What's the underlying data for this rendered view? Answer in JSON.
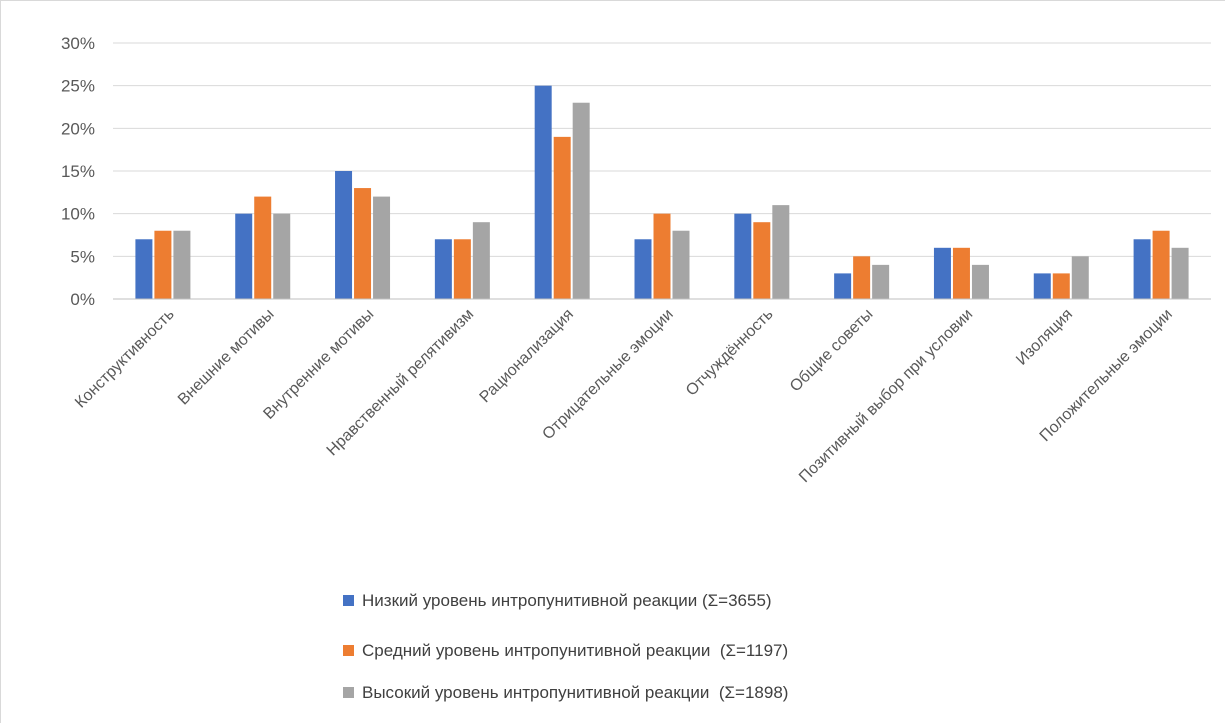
{
  "chart_data": {
    "type": "bar",
    "categories": [
      "Конструктивность",
      "Внешние мотивы",
      "Внутренние мотивы",
      "Нравственный релятивизм",
      "Рационализация",
      "Отрицательные эмоции",
      "Отчуждённость",
      "Общие советы",
      "Позитивный выбор при условии",
      "Изоляция",
      "Положительные эмоции"
    ],
    "series": [
      {
        "name": "Низкий уровень интропунитивной реакции (Σ=3655)",
        "color": "#4472C4",
        "values": [
          7,
          10,
          15,
          7,
          25,
          7,
          10,
          3,
          6,
          3,
          7
        ]
      },
      {
        "name": "Средний уровень интропунитивной реакции  (Σ=1197)",
        "color": "#ED7D31",
        "values": [
          8,
          12,
          13,
          7,
          19,
          10,
          9,
          5,
          6,
          3,
          8
        ]
      },
      {
        "name": "Высокий уровень интропунитивной реакции  (Σ=1898)",
        "color": "#A5A5A5",
        "values": [
          8,
          10,
          12,
          9,
          23,
          8,
          11,
          4,
          4,
          5,
          6
        ]
      }
    ],
    "y_ticks": [
      "0%",
      "5%",
      "10%",
      "15%",
      "20%",
      "25%",
      "30%"
    ],
    "ylim": [
      0,
      30
    ],
    "title": "",
    "xlabel": "",
    "ylabel": "",
    "grid": true,
    "legend_position": "bottom"
  }
}
